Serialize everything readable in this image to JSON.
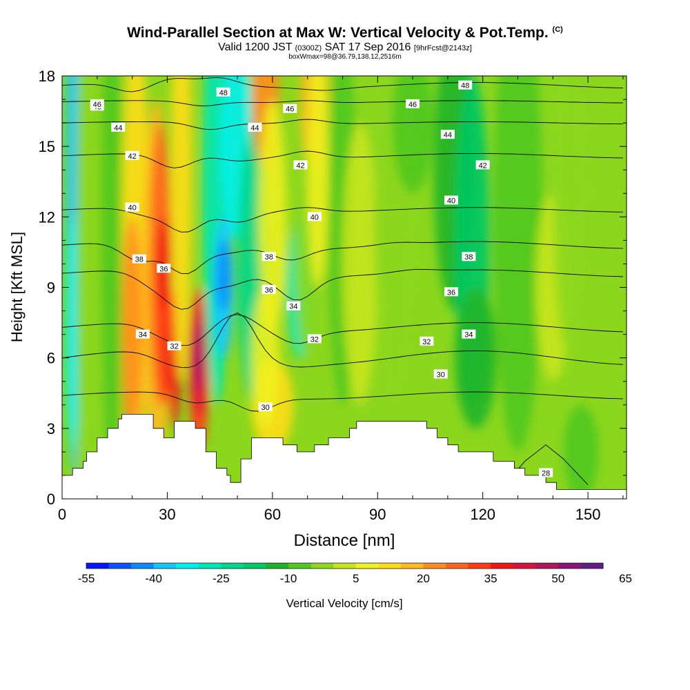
{
  "header": {
    "title": "Wind-Parallel Section at Max W: Vertical Velocity & Pot.Temp.",
    "title_units": "(C)",
    "valid_main": "Valid 1200 JST",
    "valid_utc": "(0300Z)",
    "valid_date": "SAT 17 Sep 2016",
    "forecast": "[9hrFcst@2143z]",
    "box_info": "boxWmax=98@36.79,138.12,2516m"
  },
  "chart_data": {
    "type": "heatmap",
    "xlabel": "Distance [nm]",
    "ylabel": "Height [Kft MSL]",
    "xlim": [
      0,
      161
    ],
    "ylim": [
      0,
      18
    ],
    "x_ticks": [
      0,
      30,
      60,
      90,
      120,
      150
    ],
    "y_ticks": [
      0,
      3,
      6,
      9,
      12,
      15,
      18
    ],
    "colorbar": {
      "label": "Vertical Velocity [cm/s]",
      "tick_labels": [
        "-55",
        "-40",
        "-25",
        "-10",
        "5",
        "20",
        "35",
        "50",
        "65"
      ],
      "colors": [
        "#0a14ff",
        "#0a55ff",
        "#0a8cff",
        "#14c8ff",
        "#00f0f0",
        "#00e6b4",
        "#00d68c",
        "#00c864",
        "#1eb428",
        "#50c81e",
        "#8cd71e",
        "#c8e61e",
        "#f0f01e",
        "#ffdc14",
        "#ffb91e",
        "#ff8c1e",
        "#ff641e",
        "#ff3c14",
        "#f01414",
        "#d7143c",
        "#b4145a",
        "#8c1478",
        "#641e8c"
      ]
    },
    "terrain_kft": [
      [
        0,
        1.0
      ],
      [
        3,
        1.0
      ],
      [
        3,
        1.3
      ],
      [
        6,
        1.3
      ],
      [
        6,
        1.6
      ],
      [
        7,
        1.6
      ],
      [
        7,
        2.0
      ],
      [
        10,
        2.0
      ],
      [
        10,
        2.6
      ],
      [
        13,
        2.6
      ],
      [
        13,
        3.0
      ],
      [
        16,
        3.0
      ],
      [
        16,
        3.4
      ],
      [
        17,
        3.4
      ],
      [
        17,
        3.6
      ],
      [
        26,
        3.6
      ],
      [
        26,
        3.0
      ],
      [
        29,
        3.0
      ],
      [
        29,
        2.6
      ],
      [
        32,
        2.6
      ],
      [
        32,
        3.3
      ],
      [
        38,
        3.3
      ],
      [
        38,
        3.0
      ],
      [
        41,
        3.0
      ],
      [
        41,
        2.0
      ],
      [
        44,
        2.0
      ],
      [
        44,
        1.3
      ],
      [
        47,
        1.3
      ],
      [
        47,
        1.0
      ],
      [
        48,
        1.0
      ],
      [
        48,
        0.7
      ],
      [
        51,
        0.7
      ],
      [
        51,
        1.7
      ],
      [
        54,
        1.7
      ],
      [
        54,
        2.6
      ],
      [
        63,
        2.6
      ],
      [
        63,
        2.3
      ],
      [
        67,
        2.3
      ],
      [
        67,
        2.0
      ],
      [
        72,
        2.0
      ],
      [
        72,
        2.3
      ],
      [
        76,
        2.3
      ],
      [
        76,
        2.6
      ],
      [
        82,
        2.6
      ],
      [
        82,
        3.0
      ],
      [
        84,
        3.0
      ],
      [
        84,
        3.3
      ],
      [
        104,
        3.3
      ],
      [
        104,
        3.0
      ],
      [
        107,
        3.0
      ],
      [
        107,
        2.6
      ],
      [
        110,
        2.6
      ],
      [
        110,
        2.3
      ],
      [
        113,
        2.3
      ],
      [
        113,
        2.0
      ],
      [
        123,
        2.0
      ],
      [
        123,
        1.6
      ],
      [
        129,
        1.6
      ],
      [
        129,
        1.3
      ],
      [
        132,
        1.3
      ],
      [
        132,
        1.0
      ],
      [
        138,
        1.0
      ],
      [
        138,
        0.7
      ],
      [
        141,
        0.7
      ],
      [
        141,
        0.4
      ],
      [
        161,
        0.4
      ]
    ],
    "theta_contours": [
      {
        "label": "48",
        "y0": 17.6,
        "base": 0.12,
        "pert": [
          [
            20,
            -0.4
          ],
          [
            32,
            0.2
          ],
          [
            45,
            0.3
          ],
          [
            75,
            -0.1
          ]
        ],
        "labels": [
          [
            10,
            16.7
          ],
          [
            46,
            17.3
          ],
          [
            115,
            17.6
          ]
        ]
      },
      {
        "label": "46",
        "y0": 16.9,
        "base": 0.05,
        "pert": [
          [
            40,
            -0.2
          ],
          [
            70,
            0.1
          ]
        ],
        "labels": [
          [
            10,
            16.8
          ],
          [
            65,
            16.6
          ],
          [
            100,
            16.8
          ]
        ]
      },
      {
        "label": "44",
        "y0": 16.0,
        "base": 0.05,
        "pert": [
          [
            42,
            -0.3
          ],
          [
            70,
            0.2
          ]
        ],
        "labels": [
          [
            16,
            15.8
          ],
          [
            55,
            15.8
          ],
          [
            110,
            15.5
          ]
        ]
      },
      {
        "label": "42",
        "y0": 14.6,
        "base": 0.1,
        "pert": [
          [
            32,
            -0.6
          ],
          [
            50,
            -0.2
          ],
          [
            70,
            0.3
          ]
        ],
        "labels": [
          [
            20,
            14.6
          ],
          [
            68,
            14.2
          ],
          [
            120,
            14.2
          ]
        ]
      },
      {
        "label": "40",
        "y0": 12.3,
        "base": 0.1,
        "pert": [
          [
            24,
            -0.3
          ],
          [
            35,
            -1.0
          ],
          [
            50,
            -0.5
          ],
          [
            70,
            0.2
          ]
        ],
        "labels": [
          [
            20,
            12.4
          ],
          [
            72,
            12.0
          ],
          [
            111,
            12.7
          ]
        ]
      },
      {
        "label": "38",
        "y0": 10.8,
        "base": 0.15,
        "pert": [
          [
            22,
            -0.8
          ],
          [
            35,
            -1.3
          ],
          [
            47,
            -0.3
          ],
          [
            65,
            -0.5
          ],
          [
            95,
            0.1
          ]
        ],
        "labels": [
          [
            22,
            10.2
          ],
          [
            59,
            10.3
          ],
          [
            116,
            10.3
          ]
        ]
      },
      {
        "label": "36",
        "y0": 9.6,
        "base": 0.15,
        "pert": [
          [
            26,
            -0.6
          ],
          [
            35,
            -1.5
          ],
          [
            47,
            -0.5
          ],
          [
            67,
            -1.0
          ],
          [
            100,
            0.1
          ]
        ],
        "labels": [
          [
            29,
            9.8
          ],
          [
            59,
            8.9
          ],
          [
            111,
            8.8
          ]
        ]
      },
      {
        "label": "34",
        "y0": 7.3,
        "base": 0.2,
        "pert": [
          [
            28,
            -0.4
          ],
          [
            36,
            -0.8
          ],
          [
            50,
            0.6
          ],
          [
            67,
            -0.5
          ]
        ],
        "labels": [
          [
            23,
            7.0
          ],
          [
            66,
            8.2
          ],
          [
            116,
            7.0
          ]
        ]
      },
      {
        "label": "32",
        "y0": 6.0,
        "base": 0.3,
        "pert": [
          [
            30,
            -0.4
          ],
          [
            38,
            -0.5
          ],
          [
            50,
            2.0
          ],
          [
            67,
            -0.1
          ]
        ],
        "labels": [
          [
            32,
            6.5
          ],
          [
            72,
            6.8
          ],
          [
            104,
            6.7
          ]
        ]
      },
      {
        "label": "30",
        "y0": 4.4,
        "base": 0.15,
        "pert": [
          [
            38,
            -0.4
          ],
          [
            55,
            -0.6
          ],
          [
            80,
            0.0
          ]
        ],
        "labels": [
          [
            58,
            3.9
          ],
          [
            108,
            5.3
          ]
        ]
      },
      {
        "label": "28",
        "y0": 0.9,
        "base": 0.0,
        "pert": [],
        "labels": [
          [
            138,
            1.1
          ]
        ]
      }
    ]
  }
}
